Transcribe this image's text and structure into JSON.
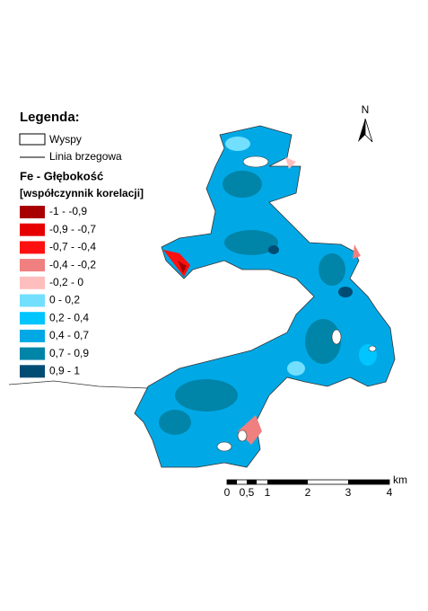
{
  "legend": {
    "title": "Legenda:",
    "islands": "Wyspy",
    "shoreline": "Linia brzegowa",
    "variable": "Fe - Głębokość",
    "unit": "[współczynnik korelacji]",
    "classes": [
      {
        "label": "-1 - -0,9",
        "color": "#a80000"
      },
      {
        "label": "-0,9 - -0,7",
        "color": "#e60000"
      },
      {
        "label": "-0,7 - -0,4",
        "color": "#ff1010"
      },
      {
        "label": "-0,4 - -0,2",
        "color": "#f08080"
      },
      {
        "label": "-0,2 - 0",
        "color": "#ffbebe"
      },
      {
        "label": "0 - 0,2",
        "color": "#73dfff"
      },
      {
        "label": "0,2 - 0,4",
        "color": "#00c5ff"
      },
      {
        "label": "0,4 - 0,7",
        "color": "#00a9e6"
      },
      {
        "label": "0,7 - 0,9",
        "color": "#0084a8"
      },
      {
        "label": "0,9 - 1",
        "color": "#004c73"
      }
    ]
  },
  "north": "N",
  "scale": {
    "labels": [
      "0",
      "0,5",
      "1",
      "2",
      "3",
      "4"
    ],
    "unit": "km"
  }
}
